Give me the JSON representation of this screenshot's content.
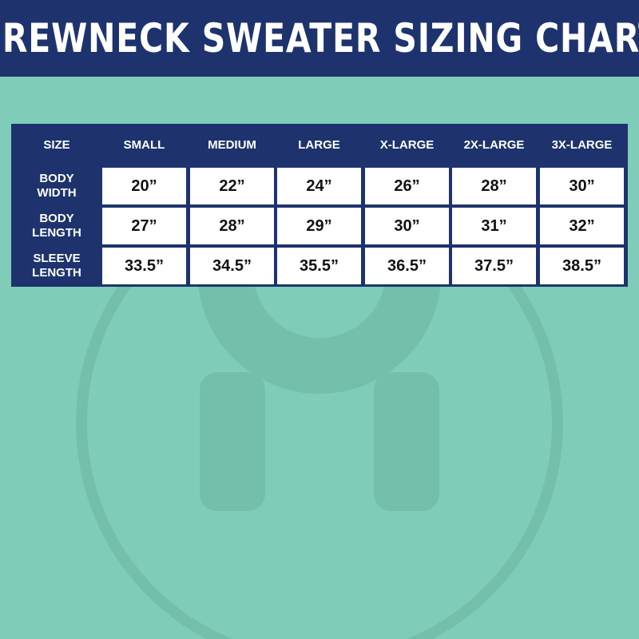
{
  "title": "CREWNECK SWEATER SIZING CHART",
  "colors": {
    "header_bg": "#1e336e",
    "background": "#7fcdb8",
    "cell_bg": "#ffffff"
  },
  "table": {
    "corner": "SIZE",
    "columns": [
      "SMALL",
      "MEDIUM",
      "LARGE",
      "X-LARGE",
      "2X-LARGE",
      "3X-LARGE"
    ],
    "rows": [
      {
        "label": [
          "BODY",
          "WIDTH"
        ],
        "values": [
          "20”",
          "22”",
          "24”",
          "26”",
          "28”",
          "30”"
        ]
      },
      {
        "label": [
          "BODY",
          "LENGTH"
        ],
        "values": [
          "27”",
          "28”",
          "29”",
          "30”",
          "31”",
          "32”"
        ]
      },
      {
        "label": [
          "SLEEVE",
          "LENGTH"
        ],
        "values": [
          "33.5”",
          "34.5”",
          "35.5”",
          "36.5”",
          "37.5”",
          "38.5”"
        ]
      }
    ]
  }
}
